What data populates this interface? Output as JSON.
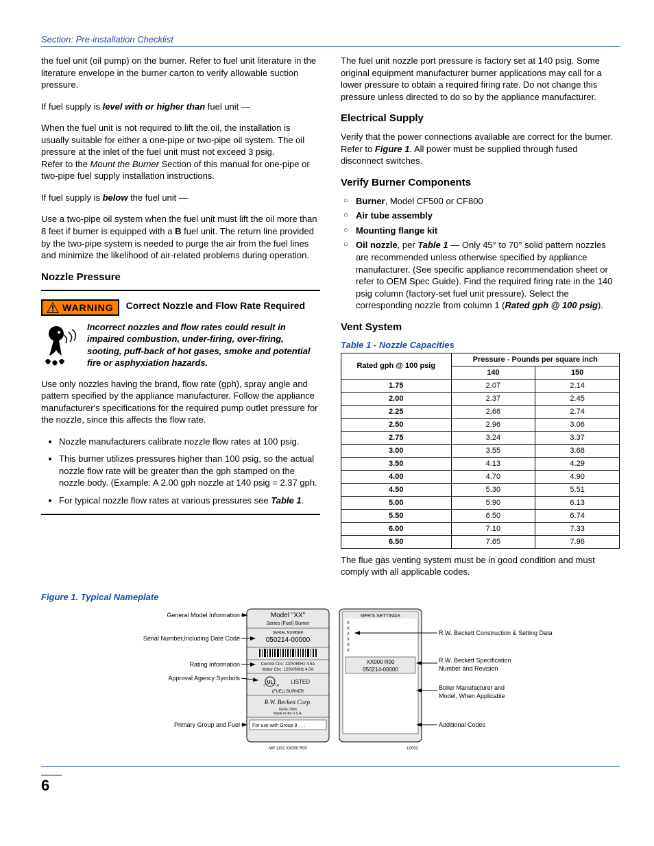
{
  "section_header": "Section: Pre-installation Checklist",
  "left": {
    "p1a": "the fuel unit (oil pump) on the burner. Refer to fuel unit literature in the literature envelope in the burner carton to verify allowable suction pressure.",
    "p2a": "If fuel supply is ",
    "p2b": "level with or higher than",
    "p2c": " fuel unit —",
    "p3a": "When the fuel unit is not required to lift the oil, the installation is usually suitable for either a one-pipe or two-pipe oil system. The oil pressure at the inlet of the fuel unit must not exceed 3 psig.",
    "p3b": "Refer to the ",
    "p3c": "Mount the Burner",
    "p3d": " Section of this manual for one-pipe or two-pipe fuel supply installation instructions.",
    "p4a": "If fuel supply is ",
    "p4b": "below",
    "p4c": " the fuel unit —",
    "p5a": "Use a two-pipe oil system when the fuel unit must lift the oil more than 8 feet if burner is equipped with a ",
    "p5b": "B",
    "p5c": " fuel unit. The return line provided by the two-pipe system is needed to purge the air from the fuel lines and minimize the likelihood of air-related problems during operation.",
    "h_nozzle": "Nozzle Pressure",
    "warn_label": "WARNING",
    "warn_title": "Correct Nozzle and Flow Rate Required",
    "warn_body": "Incorrect nozzles and flow rates could result in impaired combustion, under-firing, over-firing, sooting, puff-back of hot gases, smoke and potential fire or asphyxiation hazards.",
    "p6": "Use only nozzles having the brand, flow rate (gph), spray angle and pattern specified by the appliance manufacturer.  Follow the appliance manufacturer's specifications for the required pump outlet pressure for the nozzle, since this affects the flow rate.",
    "b1": "Nozzle manufacturers calibrate nozzle flow rates at 100 psig.",
    "b2": "This burner utilizes pressures higher than 100 psig, so the actual nozzle flow rate will be greater than the gph stamped on the nozzle body. (Example: A 2.00 gph nozzle at 140 psig = 2.37 gph.",
    "b3a": "For typical nozzle flow rates at various pressures see ",
    "b3b": "Table 1",
    "b3c": "."
  },
  "right": {
    "p1": "The fuel unit nozzle port pressure is factory set at 140 psig. Some original equipment manufacturer burner applications may call for a lower pressure to obtain a required firing rate.  Do not change this pressure unless directed to do so by the appliance manufacturer.",
    "h_elec": "Electrical Supply",
    "p2a": "Verify that the power connections available are correct for the burner. Refer to ",
    "p2b": "Figure 1",
    "p2c": ".  All power must be supplied through fused disconnect switches.",
    "h_verify": "Verify Burner Components",
    "c1a": "Burner",
    "c1b": ", Model CF500 or CF800",
    "c2": "Air tube assembly",
    "c3": "Mounting flange kit",
    "c4a": "Oil nozzle",
    "c4b": ", per ",
    "c4c": "Table 1",
    "c4d": " — Only 45° to 70° solid pattern nozzles are recommended unless otherwise specified by appliance manufacturer. (See specific appliance recommendation sheet or refer to OEM Spec Guide). Find the required firing rate in the 140 psig column (factory-set fuel unit pressure). Select the corresponding nozzle from column 1 (",
    "c4e": "Rated gph @ 100 psig",
    "c4f": ").",
    "h_vent": "Vent System",
    "table_caption": "Table 1 - Nozzle Capacities",
    "th1": "Rated gph @  100 psig",
    "th2": "Pressure - Pounds per square inch",
    "th2a": "140",
    "th2b": "150",
    "p3": "The flue gas venting system must be in good condition and must comply with all applicable codes."
  },
  "table_rows": [
    [
      "1.75",
      "2.07",
      "2.14"
    ],
    [
      "2.00",
      "2.37",
      "2.45"
    ],
    [
      "2.25",
      "2.66",
      "2.74"
    ],
    [
      "2.50",
      "2.96",
      "3.06"
    ],
    [
      "2.75",
      "3.24",
      "3.37"
    ],
    [
      "3.00",
      "3.55",
      "3.68"
    ],
    [
      "3.50",
      "4.13",
      "4.29"
    ],
    [
      "4.00",
      "4.70",
      "4.90"
    ],
    [
      "4.50",
      "5.30",
      "5.51"
    ],
    [
      "5.00",
      "5.90",
      "6.13"
    ],
    [
      "5.50",
      "6.50",
      "6.74"
    ],
    [
      "6.00",
      "7.10",
      "7.33"
    ],
    [
      "6.50",
      "7.65",
      "7.96"
    ]
  ],
  "fig": {
    "caption": "Figure 1.  Typical Nameplate",
    "l1": "General Model Information",
    "l2": "Serial Number,Including Date Code",
    "l3": "Rating Information",
    "l4": "Approval Agency Symbols",
    "l5": "Primary Group and Fuel",
    "r1": "R.W. Beckett Construction & Setting Data",
    "r2": "R.W. Beckett Specification Number and Revision",
    "r3": "Boiler Manufacturer and Model, When Applicable",
    "r4": "Additional Codes",
    "np_model": "Model \"XX\"",
    "np_series": "Series (Fuel) Burner",
    "np_snlbl": "SERIAL NUMBER",
    "np_sn": "050214-00000",
    "np_rating1": "Control Circ: 120V/60Hz 4.5A",
    "np_rating2": "Motor Circ: 120V/60Hz 4.0A",
    "np_listed": "LISTED",
    "np_fuelburner": "(FUEL) BURNER",
    "np_corp": "R.W. Beckett Corp.",
    "np_addr": "Elyria, Ohio\nMade in the U.S.A.",
    "np_group": "For use with Group 8 . . .",
    "np_foot": "MP 1192    XX000    R00",
    "mfr_title": "MFR'S SETTINGS",
    "mfr_x": "X",
    "mfr_spec": "XX000    R00",
    "mfr_sn": "050214-00000",
    "mfr_foot": "L0002"
  },
  "page_number": "6"
}
